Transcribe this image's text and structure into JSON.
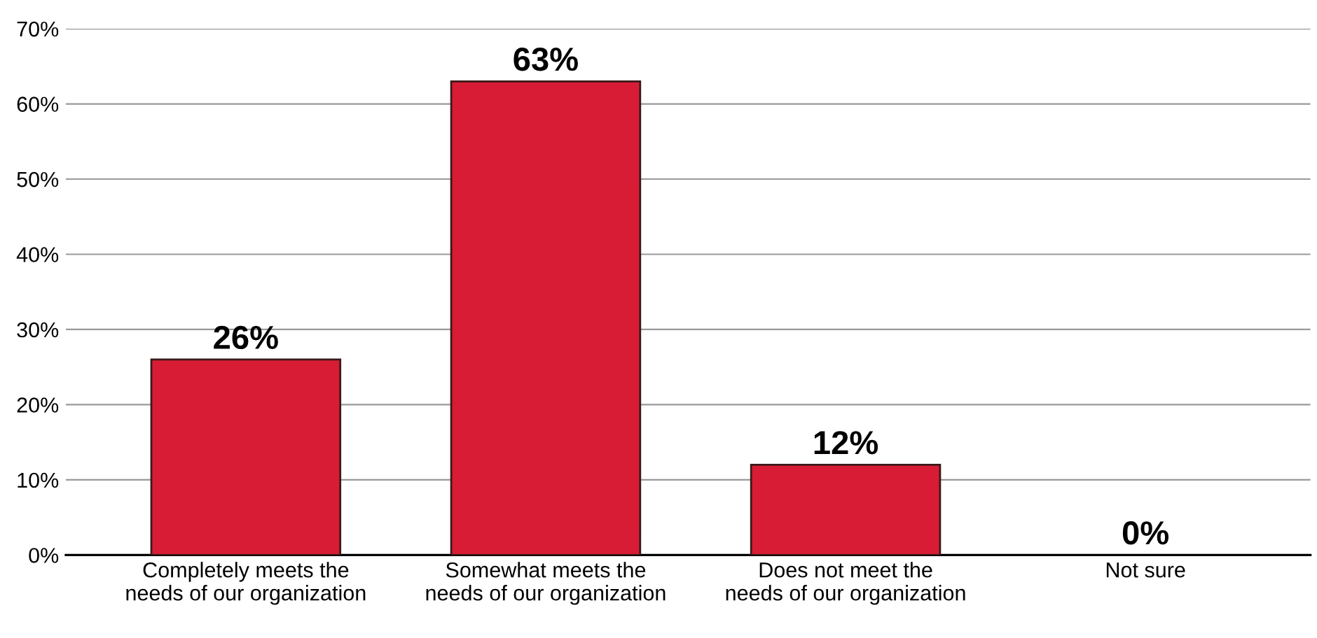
{
  "chart_data": {
    "type": "bar",
    "categories": [
      "Completely meets the\nneeds of our organization",
      "Somewhat meets the\nneeds of our organization",
      "Does not meet the\nneeds of our organization",
      "Not sure"
    ],
    "values": [
      26,
      63,
      12,
      0
    ],
    "color": "#d81c35",
    "value_labels": [
      "26%",
      "63%",
      "12%",
      "0%"
    ],
    "ylim": [
      0,
      70
    ],
    "yticks": [
      {
        "value": 0,
        "label": "0%"
      },
      {
        "value": 10,
        "label": "10%"
      },
      {
        "value": 20,
        "label": "20%"
      },
      {
        "value": 30,
        "label": "30%"
      },
      {
        "value": 40,
        "label": "40%"
      },
      {
        "value": 50,
        "label": "50%"
      },
      {
        "value": 60,
        "label": "60%"
      },
      {
        "value": 70,
        "label": "70%"
      }
    ],
    "grid": "y",
    "legend": false
  }
}
